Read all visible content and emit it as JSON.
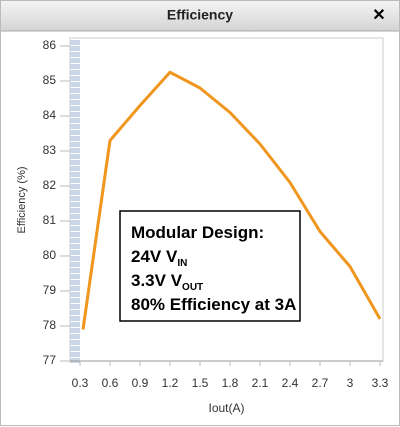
{
  "window": {
    "title": "Efficiency",
    "close": "✕"
  },
  "chart_data": {
    "type": "line",
    "x_label": "Iout(A)",
    "y_label": "Efficiency (%)",
    "x": [
      0.33,
      0.6,
      0.9,
      1.2,
      1.5,
      1.8,
      2.1,
      2.4,
      2.7,
      3.0,
      3.3
    ],
    "series": [
      {
        "color": "#f0961e",
        "values": [
          77.9,
          83.3,
          84.3,
          85.25,
          84.8,
          84.1,
          83.2,
          82.1,
          80.7,
          79.7,
          78.2
        ]
      }
    ],
    "xlim": [
      0.2,
      3.33
    ],
    "ylim": [
      77,
      86
    ],
    "xticks": [
      0.3,
      0.6,
      0.9,
      1.2,
      1.5,
      1.8,
      2.1,
      2.4,
      2.7,
      3,
      3.3
    ],
    "yticks": [
      77,
      78,
      79,
      80,
      81,
      82,
      83,
      84,
      85,
      86
    ],
    "annotation": [
      {
        "text": "Modular Design:"
      },
      {
        "text": "24V V",
        "sub": "IN"
      },
      {
        "text": "3.3V V",
        "sub": "OUT"
      },
      {
        "text": "80% Efficiency at 3A"
      }
    ]
  }
}
